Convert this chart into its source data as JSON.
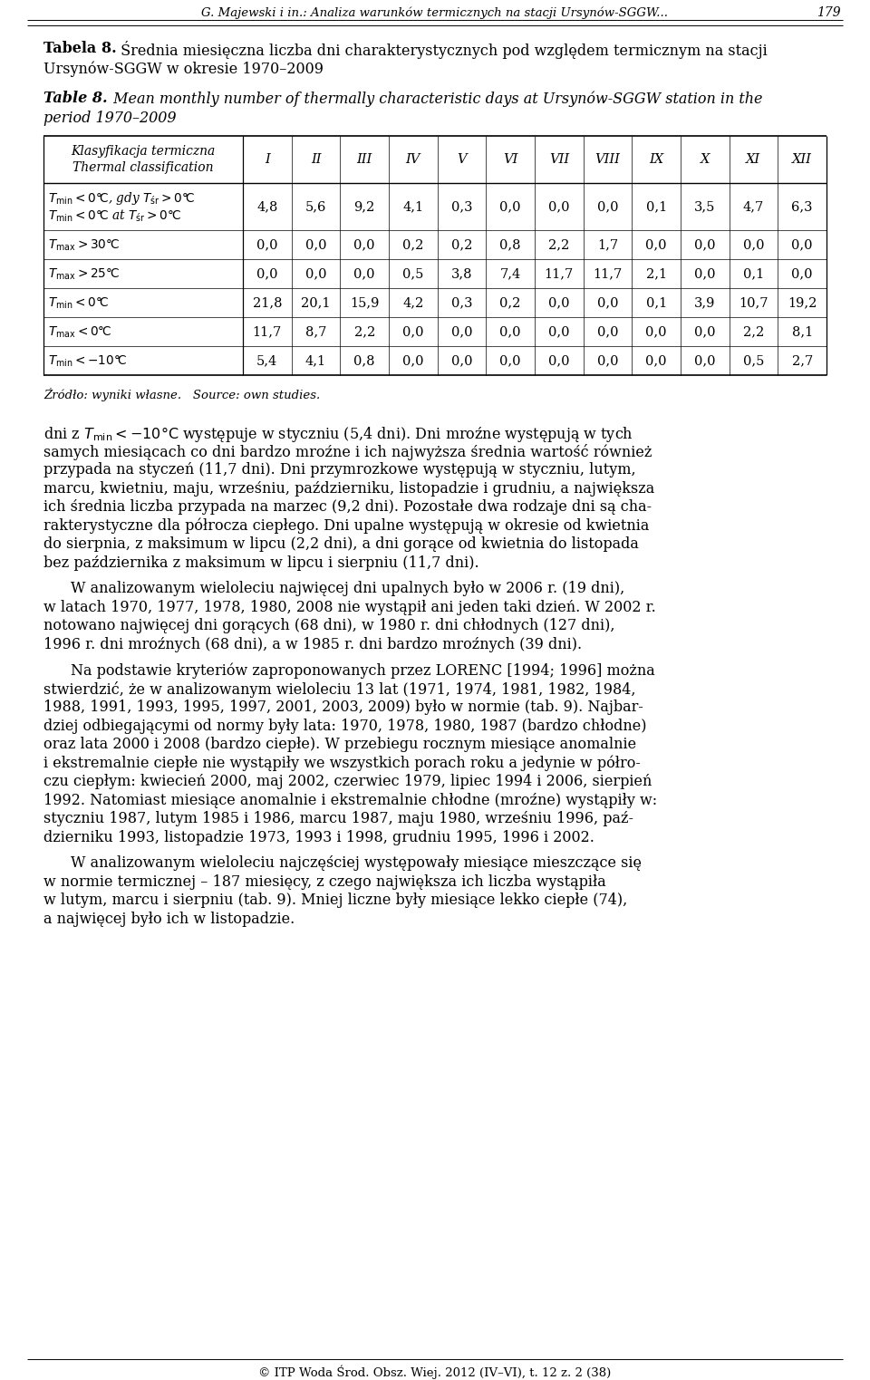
{
  "page_title_italic": "G. Majewski i in.: Analiza warunków termicznych na stacji Ursynów-SGGW...",
  "page_number": "179",
  "title_polish_bold": "Tabela 8.",
  "title_polish_rest": " Średniamiesięczna liczba dni charakterystycznych pod względem termicznym na stacji Ursynów-SGGW w okresie 1970–2009",
  "title_english_bold": "Table 8.",
  "title_english_rest": " Mean monthly number of thermally characteristic days at Ursynów-SGGW station in the period 1970–2009",
  "months": [
    "I",
    "II",
    "III",
    "IV",
    "V",
    "VI",
    "VII",
    "VIII",
    "IX",
    "X",
    "XI",
    "XII"
  ],
  "rows": [
    {
      "values": [
        4.8,
        5.6,
        9.2,
        4.1,
        0.3,
        0.0,
        0.0,
        0.0,
        0.1,
        3.5,
        4.7,
        6.3
      ],
      "two_lines": true
    },
    {
      "values": [
        0.0,
        0.0,
        0.0,
        0.2,
        0.2,
        0.8,
        2.2,
        1.7,
        0.0,
        0.0,
        0.0,
        0.0
      ],
      "two_lines": false
    },
    {
      "values": [
        0.0,
        0.0,
        0.0,
        0.5,
        3.8,
        7.4,
        11.7,
        11.7,
        2.1,
        0.0,
        0.1,
        0.0
      ],
      "two_lines": false
    },
    {
      "values": [
        21.8,
        20.1,
        15.9,
        4.2,
        0.3,
        0.2,
        0.0,
        0.0,
        0.1,
        3.9,
        10.7,
        19.2
      ],
      "two_lines": false
    },
    {
      "values": [
        11.7,
        8.7,
        2.2,
        0.0,
        0.0,
        0.0,
        0.0,
        0.0,
        0.0,
        0.0,
        2.2,
        8.1
      ],
      "two_lines": false
    },
    {
      "values": [
        5.4,
        4.1,
        0.8,
        0.0,
        0.0,
        0.0,
        0.0,
        0.0,
        0.0,
        0.0,
        0.5,
        2.7
      ],
      "two_lines": false
    }
  ],
  "source_text": "Źródło: wyniki własne.   Source: own studies.",
  "para1_lines": [
    "dni z T",
    "samych miesiącach co dni bardzo mroźne i ich najwyższa średnia wartość również",
    "przypada na styczeń (11,7 dni). Dni przymrozkowe występują w styczniu, lutym,",
    "marcu, kwietniu, maju, wrześniu, październiku, listopadzie i grudniu, a największa",
    "ich średnia liczba przypada na marzec (9,2 dni). Pozostałe dwa rodzaje dni są cha-",
    "rakterystyczne dla półrocza ciepłego. Dni upalne występują w okresie od kwietnia",
    "do sierpnia, z maksimum w lipcu (2,2 dni), a dni gorące od kwietnia do listopada",
    "bez październiku z maksimum w lipcu i sierpniu (11,7 dni)."
  ],
  "para2_lines": [
    "W analizowanym wieloleciu najwięcej dni upalnych było w 2006 r. (19 dni),",
    "w latach 1970, 1977, 1978, 1980, 2008 nie wystąpił ani jeden taki dzień. W 2002 r.",
    "notowano najwięcej dni gorących (68 dni), w 1980 r. dni chłodnych (127 dni),",
    "1996 r. dni mroźych (68 dni), a w 1985 r. dni bardzo mroźych (39 dni)."
  ],
  "para3_lines": [
    "Na podstawie kryteriów zaproponowanych przez LORENC [1994; 1996] można",
    "stwierdzić, że w analizowanym wieloleciu 13 lat (1971, 1974, 1981, 1982, 1984,",
    "1988, 1991, 1993, 1995, 1997, 2001, 2003, 2009) było w normie (tab. 9). Najbar-",
    "dziej odbiegającymi od normy były lata: 1970, 1978, 1980, 1987 (bardzo chłodne)",
    "oraz lata 2000 i 2008 (bardzo ciepłe). W przebiegu rocznym miesiące anomalnie",
    "i ekstremalnie ciepłe nie wystąpiły we wszystkich porach roku a jedynie w półro-",
    "czu ciepłym: kwiecień 2000, maj 2002, czerwiec 1979, lipiec 1994 i 2006, sierpień",
    "1992. Natomiast miesiące anomalnie i ekstremalnie chłodne (mroźne) wystąpiły w:",
    "styczniu 1987, lutym 1985 i 1986, marcu 1987, maju 1980, wrześniu 1996, paź-",
    "dzierniku 1993, listopadzie 1973, 1993 i 1998, grudniu 1995, 1996 i 2002."
  ],
  "para4_lines": [
    "W analizowanym wieloleciu najczęściej występowały miesiące mieszczące się",
    "w normie termicznej – 187 miesięcy, z czego największa ich liczba wystąpiła",
    "w lutym, marcu i sierpniu (tab. 9). Mniej liczne były miesiące lekko ciepłe (74),",
    "a najwięcej było ich w listopadzie."
  ],
  "footer": "© ITP Woda Środ. Obsz. Wiej. 2012 (IV–VI), t. 12 z. 2 (38)"
}
